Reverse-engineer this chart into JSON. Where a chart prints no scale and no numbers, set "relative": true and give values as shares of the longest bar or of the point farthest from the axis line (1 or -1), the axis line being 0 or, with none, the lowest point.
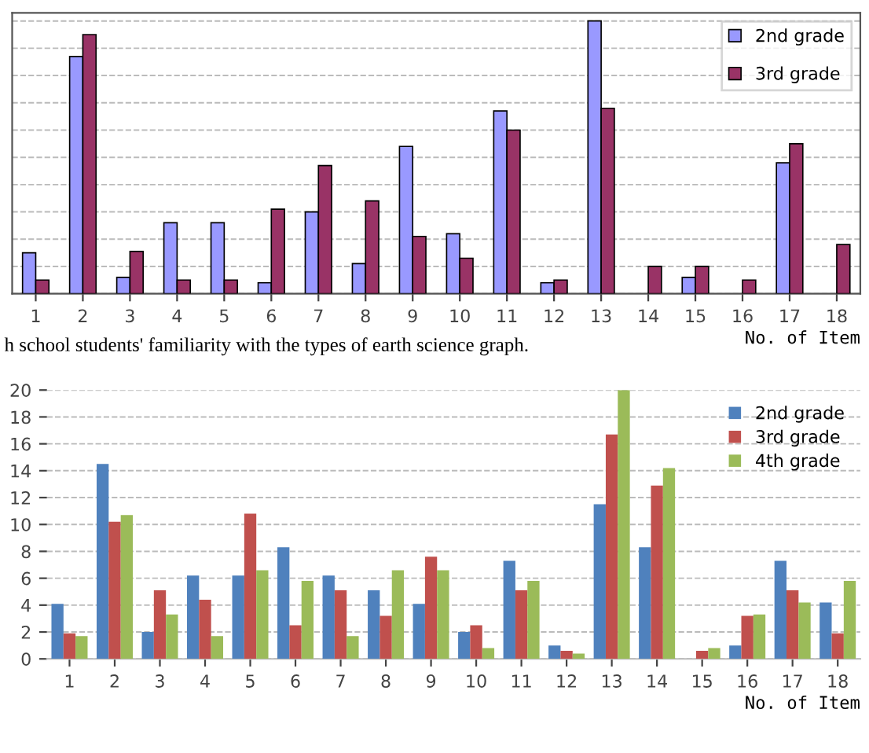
{
  "chart_data": [
    {
      "type": "bar",
      "relative": true,
      "categories": [
        "1",
        "2",
        "3",
        "4",
        "5",
        "6",
        "7",
        "8",
        "9",
        "10",
        "11",
        "12",
        "13",
        "14",
        "15",
        "16",
        "17",
        "18"
      ],
      "xlabel": "No. of Item",
      "legend": "top right",
      "grid": "y",
      "tick_labels": "x",
      "annotations": [
        "h school students' familiarity with the types of earth science graph."
      ],
      "series": [
        {
          "name": "2nd grade",
          "color": "#9999ff",
          "values": [
            0.15,
            0.87,
            0.06,
            0.26,
            0.26,
            0.04,
            0.3,
            0.11,
            0.54,
            0.22,
            0.67,
            0.04,
            1,
            null,
            0.06,
            null,
            0.48,
            null
          ]
        },
        {
          "name": "3rd grade",
          "color": "#993366",
          "values": [
            0.05,
            0.95,
            0.155,
            0.05,
            0.05,
            0.31,
            0.47,
            0.34,
            0.21,
            0.13,
            0.6,
            0.05,
            0.68,
            0.1,
            0.1,
            0.05,
            0.55,
            0.18
          ]
        }
      ]
    },
    {
      "type": "bar",
      "categories": [
        "1",
        "2",
        "3",
        "4",
        "5",
        "6",
        "7",
        "8",
        "9",
        "10",
        "11",
        "12",
        "13",
        "14",
        "15",
        "16",
        "17",
        "18"
      ],
      "xlabel": "No. of Item",
      "legend": "top right",
      "grid": "y",
      "ylim": [
        0,
        20
      ],
      "yticks": [
        0,
        2,
        4,
        6,
        8,
        10,
        12,
        14,
        16,
        18,
        20
      ],
      "series": [
        {
          "name": "2nd grade",
          "color": "#4f81bd",
          "values": [
            4.1,
            14.5,
            2.0,
            6.2,
            6.2,
            8.3,
            6.2,
            5.1,
            4.1,
            2.0,
            7.3,
            1.0,
            11.5,
            8.3,
            null,
            1.0,
            7.3,
            4.2
          ]
        },
        {
          "name": "3rd grade",
          "color": "#c0504d",
          "values": [
            1.9,
            10.2,
            5.1,
            4.4,
            10.8,
            2.5,
            5.1,
            3.2,
            7.6,
            2.5,
            5.1,
            0.6,
            16.7,
            12.9,
            0.6,
            3.2,
            5.1,
            1.9
          ]
        },
        {
          "name": "4th grade",
          "color": "#9bbb59",
          "values": [
            1.7,
            10.7,
            3.3,
            1.7,
            6.6,
            5.8,
            1.7,
            6.6,
            6.6,
            0.8,
            5.8,
            0.4,
            20,
            14.2,
            0.8,
            3.3,
            4.2,
            5.8
          ]
        }
      ]
    }
  ]
}
